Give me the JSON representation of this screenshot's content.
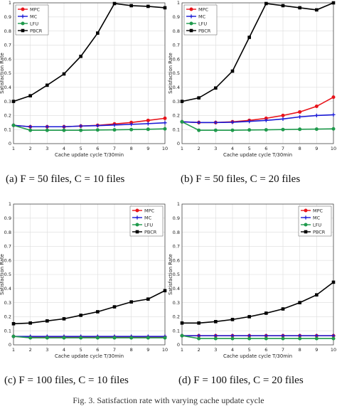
{
  "chart_data": [
    {
      "id": "a",
      "type": "line",
      "caption": "(a)  F = 50 files, C = 10 files",
      "xlabel": "Cache update cycle T/30min",
      "ylabel": "Satisfaction Rate",
      "x": [
        1,
        2,
        3,
        4,
        5,
        6,
        7,
        8,
        9,
        10
      ],
      "xlim": [
        1,
        10
      ],
      "ylim": [
        0,
        1
      ],
      "yticks": [
        0,
        0.1,
        0.2,
        0.3,
        0.4,
        0.5,
        0.6,
        0.7,
        0.8,
        0.9,
        1
      ],
      "grid": true,
      "legend": "top-left",
      "series": [
        {
          "name": "MPC",
          "color": "#e8141b",
          "marker": "dot",
          "values": [
            0.13,
            0.12,
            0.12,
            0.12,
            0.125,
            0.13,
            0.14,
            0.15,
            0.165,
            0.18
          ]
        },
        {
          "name": "MC",
          "color": "#1a1ad6",
          "marker": "plus",
          "values": [
            0.13,
            0.12,
            0.12,
            0.12,
            0.125,
            0.128,
            0.132,
            0.137,
            0.142,
            0.148
          ]
        },
        {
          "name": "LFU",
          "color": "#1f9a4c",
          "marker": "dot",
          "values": [
            0.13,
            0.095,
            0.095,
            0.095,
            0.095,
            0.097,
            0.098,
            0.1,
            0.102,
            0.105
          ]
        },
        {
          "name": "PBCR",
          "color": "#000000",
          "marker": "square",
          "values": [
            0.3,
            0.34,
            0.415,
            0.495,
            0.62,
            0.785,
            0.995,
            0.98,
            0.975,
            0.965
          ]
        }
      ]
    },
    {
      "id": "b",
      "type": "line",
      "caption": "(b)  F = 50 files, C = 20 files",
      "xlabel": "Cache update cycle T/30min",
      "ylabel": "Satisfaction Rate",
      "x": [
        1,
        2,
        3,
        4,
        5,
        6,
        7,
        8,
        9,
        10
      ],
      "xlim": [
        1,
        10
      ],
      "ylim": [
        0,
        1
      ],
      "yticks": [
        0,
        0.1,
        0.2,
        0.3,
        0.4,
        0.5,
        0.6,
        0.7,
        0.8,
        0.9,
        1
      ],
      "grid": true,
      "legend": "top-left",
      "series": [
        {
          "name": "MPC",
          "color": "#e8141b",
          "marker": "dot",
          "values": [
            0.155,
            0.15,
            0.15,
            0.155,
            0.165,
            0.18,
            0.2,
            0.225,
            0.265,
            0.33
          ]
        },
        {
          "name": "MC",
          "color": "#1a1ad6",
          "marker": "plus",
          "values": [
            0.155,
            0.15,
            0.15,
            0.152,
            0.158,
            0.165,
            0.175,
            0.19,
            0.2,
            0.205
          ]
        },
        {
          "name": "LFU",
          "color": "#1f9a4c",
          "marker": "dot",
          "values": [
            0.155,
            0.095,
            0.095,
            0.095,
            0.097,
            0.098,
            0.1,
            0.102,
            0.103,
            0.105
          ]
        },
        {
          "name": "PBCR",
          "color": "#000000",
          "marker": "square",
          "values": [
            0.3,
            0.325,
            0.395,
            0.515,
            0.755,
            0.995,
            0.98,
            0.965,
            0.95,
            1.0
          ]
        }
      ]
    },
    {
      "id": "c",
      "type": "line",
      "caption": "(c)  F = 100 files, C = 10 files",
      "xlabel": "Cache update cycle T/30min",
      "ylabel": "Satisfaction Rate",
      "x": [
        1,
        2,
        3,
        4,
        5,
        6,
        7,
        8,
        9,
        10
      ],
      "xlim": [
        1,
        10
      ],
      "ylim": [
        0,
        1
      ],
      "yticks": [
        0,
        0.1,
        0.2,
        0.3,
        0.4,
        0.5,
        0.6,
        0.7,
        0.8,
        0.9,
        1
      ],
      "grid": true,
      "legend": "top-right",
      "series": [
        {
          "name": "MPC",
          "color": "#e8141b",
          "marker": "dot",
          "values": [
            0.06,
            0.055,
            0.055,
            0.055,
            0.055,
            0.055,
            0.055,
            0.055,
            0.055,
            0.055
          ]
        },
        {
          "name": "MC",
          "color": "#1a1ad6",
          "marker": "plus",
          "values": [
            0.06,
            0.06,
            0.06,
            0.06,
            0.06,
            0.06,
            0.06,
            0.06,
            0.06,
            0.06
          ]
        },
        {
          "name": "LFU",
          "color": "#1f9a4c",
          "marker": "dot",
          "values": [
            0.06,
            0.05,
            0.05,
            0.05,
            0.05,
            0.05,
            0.05,
            0.05,
            0.05,
            0.05
          ]
        },
        {
          "name": "PBCR",
          "color": "#000000",
          "marker": "square",
          "values": [
            0.15,
            0.155,
            0.17,
            0.185,
            0.21,
            0.235,
            0.27,
            0.305,
            0.325,
            0.385
          ]
        }
      ]
    },
    {
      "id": "d",
      "type": "line",
      "caption": "(d)  F = 100 files, C = 20 files",
      "xlabel": "Cache update cycle T/30min",
      "ylabel": "Satisfaction Rate",
      "x": [
        1,
        2,
        3,
        4,
        5,
        6,
        7,
        8,
        9,
        10
      ],
      "xlim": [
        1,
        10
      ],
      "ylim": [
        0,
        1
      ],
      "yticks": [
        0,
        0.1,
        0.2,
        0.3,
        0.4,
        0.5,
        0.6,
        0.7,
        0.8,
        0.9,
        1
      ],
      "grid": true,
      "legend": "top-right",
      "series": [
        {
          "name": "MPC",
          "color": "#e8141b",
          "marker": "dot",
          "values": [
            0.065,
            0.065,
            0.065,
            0.065,
            0.065,
            0.065,
            0.065,
            0.065,
            0.065,
            0.065
          ]
        },
        {
          "name": "MC",
          "color": "#1a1ad6",
          "marker": "plus",
          "values": [
            0.065,
            0.065,
            0.065,
            0.065,
            0.065,
            0.065,
            0.065,
            0.065,
            0.065,
            0.065
          ]
        },
        {
          "name": "LFU",
          "color": "#1f9a4c",
          "marker": "dot",
          "values": [
            0.065,
            0.045,
            0.045,
            0.045,
            0.045,
            0.045,
            0.045,
            0.045,
            0.045,
            0.045
          ]
        },
        {
          "name": "PBCR",
          "color": "#000000",
          "marker": "square",
          "values": [
            0.155,
            0.155,
            0.165,
            0.18,
            0.2,
            0.225,
            0.255,
            0.3,
            0.355,
            0.445
          ]
        }
      ]
    }
  ],
  "figure_caption": "Fig. 3.  Satisfaction rate with varying cache update cycle"
}
